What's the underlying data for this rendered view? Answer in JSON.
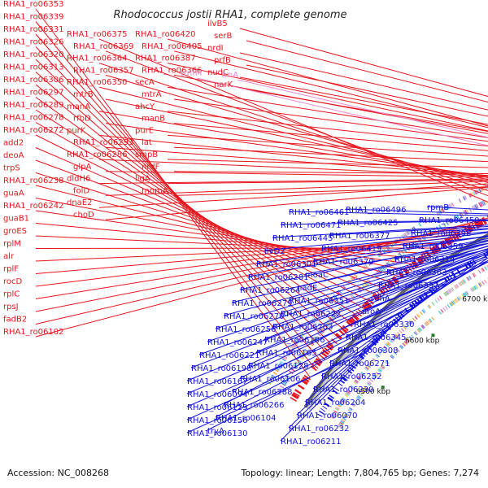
{
  "title": "Rhodococcus jostii RHA1, complete genome",
  "accession": "Accession: NC_008268",
  "summary": "Topology: linear; Length: 7,804,765 bp; Genes: 7,274",
  "colors": {
    "forward": "#e8141c",
    "reverse": "#1010e0",
    "rna": "#e888d0",
    "backbone": "#8c8c8c",
    "tick": "#2b7a2b"
  },
  "ticks": [
    "6500 kbp",
    "6600 kbp",
    "6700 kbp",
    "6800 kbp",
    "6900 kbp",
    "7000 kbp",
    "7100 kbp"
  ],
  "forward_labels": [
    "RHA1_ro06353",
    "RHA1_ro06339",
    "RHA1_ro06331",
    "RHA1_ro06326",
    "RHA1_ro06320",
    "RHA1_ro06313",
    "RHA1_ro06306",
    "RHA1_ro06297",
    "RHA1_ro06289",
    "RHA1_ro06278",
    "RHA1_ro06272",
    "add2",
    "deoA",
    "trpS",
    "RHA1_ro06238",
    "guaA",
    "RHA1_ro06242",
    "guaB1",
    "groES",
    "rplM",
    "alr",
    "rplF",
    "rocD",
    "rplC",
    "rpsJ",
    "fadB2",
    "RHA1_ro06102",
    "RHA1_ro06375",
    "RHA1_ro06369",
    "RHA1_ro06364",
    "RHA1_ro06357",
    "RHA1_ro06350",
    "mtrB",
    "manA",
    "rfbD",
    "purK",
    "RHA1_ro06293",
    "RHA1_ro06286",
    "glpA",
    "dldH6",
    "folD",
    "dnaE2",
    "choD",
    "RHA1_ro06420",
    "RHA1_ro06405",
    "RHA1_ro06387",
    "RHA1_ro06366",
    "secA",
    "mtrA",
    "ahcY",
    "manB",
    "purE",
    "lat",
    "smpB",
    "nrdF",
    "ligA",
    "mnmA",
    "ilvB5",
    "serB",
    "nrdI",
    "prfB",
    "nudC",
    "narK"
  ],
  "rna_labels": [
    "trnfM",
    "trnA"
  ],
  "reverse_labels": [
    "rpmB",
    "RHA1_ro06496",
    "RHA1_ro06461",
    "RHA1_ro06450",
    "RHA1_ro06425",
    "RHA1_ro06471",
    "RHA1_ro06398",
    "RHA1_ro06377",
    "RHA1_ro06445",
    "RHA1_ro06359",
    "RHA1_ro06419",
    "ilvD2",
    "RHA1_ro06314",
    "RHA1_ro06370",
    "RHA1_ro06301",
    "RHA1_ro06363",
    "moaC",
    "RHA1_ro06281",
    "RHA1_ro06337",
    "nadE",
    "RHA1_ro06264",
    "sdhA",
    "RHA1_ro06351",
    "RHA1_ro06279",
    "aroA",
    "RHA1_ro06222",
    "RHA1_ro06270",
    "RHA1_ro06330",
    "RHA1_ro06203",
    "RHA1_ro06256",
    "RHA1_ro06345",
    "RHA1_ro06186",
    "RHA1_ro06247",
    "RHA1_ro06308",
    "RHA1_ro06165",
    "RHA1_ro06221",
    "RHA1_ro06271",
    "RHA1_ro06128",
    "RHA1_ro06198",
    "RHA1_ro06252",
    "RHA1_ro06106",
    "RHA1_ro06167",
    "RHA1_ro06230",
    "RHA1_ro06288",
    "RHA1_ro06094",
    "RHA1_ro06204",
    "RHA1_ro06266",
    "RHA1_ro06129",
    "RHA1_ro06070",
    "RHA1_ro06104",
    "RHA1_ro06156",
    "RHA1_ro06232",
    "tryA",
    "RHA1_ro06130",
    "RHA1_ro06211"
  ]
}
